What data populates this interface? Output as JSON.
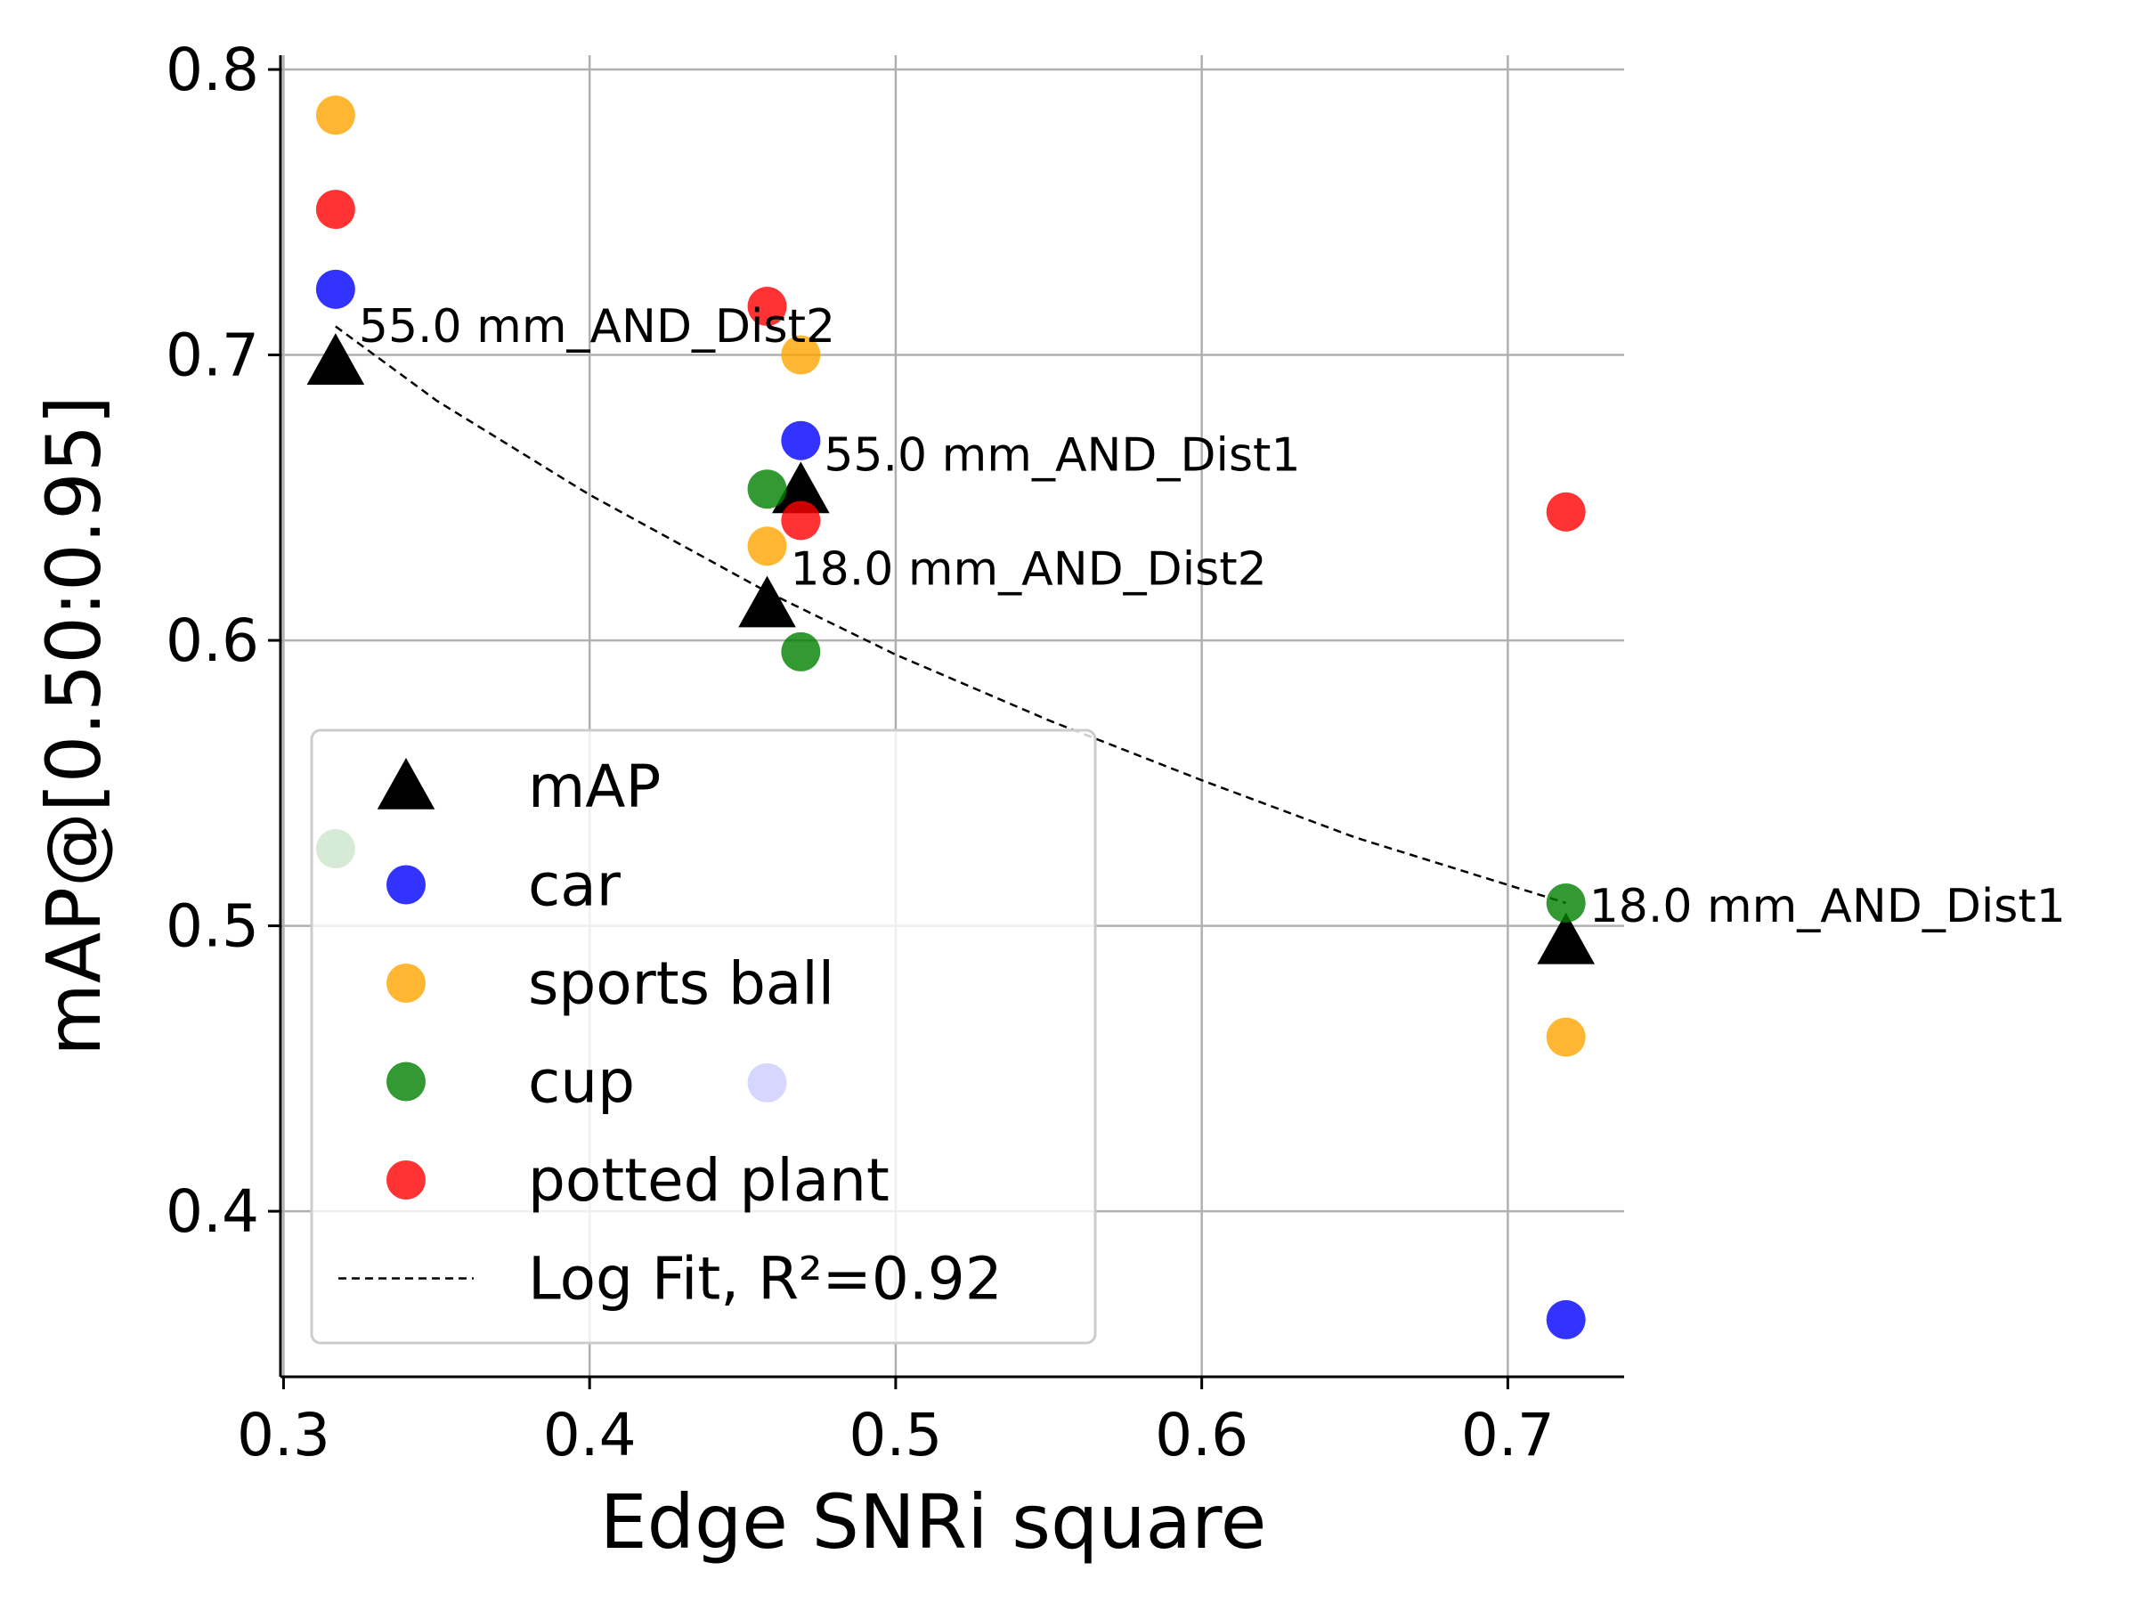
{
  "chart_data": {
    "type": "scatter",
    "title": "",
    "xlabel": "Edge SNRi square",
    "ylabel": "mAP@[0.50:0.95]",
    "xlim": [
      0.299,
      0.738
    ],
    "ylim": [
      0.342,
      0.805
    ],
    "xticks": [
      0.3,
      0.4,
      0.5,
      0.6,
      0.7
    ],
    "xtick_labels": [
      "0.3",
      "0.4",
      "0.5",
      "0.6",
      "0.7"
    ],
    "yticks": [
      0.4,
      0.5,
      0.6,
      0.7,
      0.8
    ],
    "ytick_labels": [
      "0.4",
      "0.5",
      "0.6",
      "0.7",
      "0.8"
    ],
    "grid": true,
    "legend_position": "bottom-left",
    "series": [
      {
        "name": "mAP",
        "marker": "triangle",
        "color": "#000000",
        "points": [
          {
            "x": 0.317,
            "y": 0.697
          },
          {
            "x": 0.469,
            "y": 0.652
          },
          {
            "x": 0.458,
            "y": 0.612
          },
          {
            "x": 0.719,
            "y": 0.494
          }
        ]
      },
      {
        "name": "car",
        "marker": "circle",
        "color": "#0000ff",
        "points": [
          {
            "x": 0.317,
            "y": 0.723
          },
          {
            "x": 0.469,
            "y": 0.67
          },
          {
            "x": 0.458,
            "y": 0.445
          },
          {
            "x": 0.719,
            "y": 0.362
          }
        ]
      },
      {
        "name": "sports ball",
        "marker": "circle",
        "color": "#ffa500",
        "points": [
          {
            "x": 0.317,
            "y": 0.784
          },
          {
            "x": 0.469,
            "y": 0.7
          },
          {
            "x": 0.458,
            "y": 0.633
          },
          {
            "x": 0.719,
            "y": 0.461
          }
        ]
      },
      {
        "name": "cup",
        "marker": "circle",
        "color": "#008000",
        "points": [
          {
            "x": 0.317,
            "y": 0.527
          },
          {
            "x": 0.469,
            "y": 0.596
          },
          {
            "x": 0.458,
            "y": 0.653
          },
          {
            "x": 0.719,
            "y": 0.508
          }
        ]
      },
      {
        "name": "potted plant",
        "marker": "circle",
        "color": "#ff0000",
        "points": [
          {
            "x": 0.317,
            "y": 0.751
          },
          {
            "x": 0.469,
            "y": 0.642
          },
          {
            "x": 0.458,
            "y": 0.717
          },
          {
            "x": 0.719,
            "y": 0.645
          }
        ]
      }
    ],
    "fit": {
      "name": "Log Fit, R²=0.92",
      "style": "dashed",
      "color": "#000000",
      "x": [
        0.317,
        0.35,
        0.4,
        0.458,
        0.5,
        0.55,
        0.6,
        0.65,
        0.719
      ],
      "y": [
        0.71,
        0.684,
        0.651,
        0.617,
        0.595,
        0.572,
        0.551,
        0.531,
        0.508
      ]
    },
    "annotations": [
      {
        "text": "55.0 mm_AND_Dist2",
        "x": 0.317,
        "y": 0.697
      },
      {
        "text": "55.0 mm_AND_Dist1",
        "x": 0.469,
        "y": 0.652
      },
      {
        "text": "18.0 mm_AND_Dist2",
        "x": 0.458,
        "y": 0.612
      },
      {
        "text": "18.0 mm_AND_Dist1",
        "x": 0.719,
        "y": 0.494
      }
    ]
  }
}
